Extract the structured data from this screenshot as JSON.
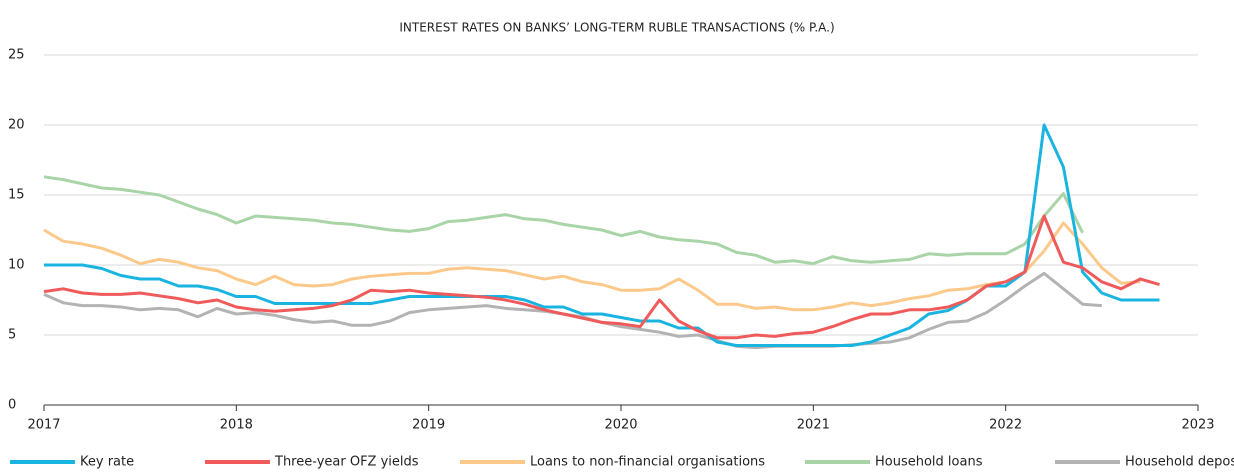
{
  "chart_data": {
    "type": "line",
    "title": "INTEREST RATES ON BANKS’ LONG-TERM RUBLE TRANSACTIONS (% P.A.)",
    "x": [
      2017.0,
      2017.1,
      2017.2,
      2017.3,
      2017.4,
      2017.5,
      2017.6,
      2017.7,
      2017.8,
      2017.9,
      2018.0,
      2018.1,
      2018.2,
      2018.3,
      2018.4,
      2018.5,
      2018.6,
      2018.7,
      2018.8,
      2018.9,
      2019.0,
      2019.1,
      2019.2,
      2019.3,
      2019.4,
      2019.5,
      2019.6,
      2019.7,
      2019.8,
      2019.9,
      2020.0,
      2020.1,
      2020.2,
      2020.3,
      2020.4,
      2020.5,
      2020.6,
      2020.7,
      2020.8,
      2020.9,
      2021.0,
      2021.1,
      2021.2,
      2021.3,
      2021.4,
      2021.5,
      2021.6,
      2021.7,
      2021.8,
      2021.9,
      2022.0,
      2022.1,
      2022.2,
      2022.3,
      2022.4,
      2022.5,
      2022.6,
      2022.7,
      2022.8
    ],
    "series": [
      {
        "name": "Key rate",
        "color": "#1ab4e0",
        "values": [
          10,
          10,
          10,
          9.75,
          9.25,
          9,
          9,
          8.5,
          8.5,
          8.25,
          7.75,
          7.75,
          7.25,
          7.25,
          7.25,
          7.25,
          7.25,
          7.25,
          7.5,
          7.75,
          7.75,
          7.75,
          7.75,
          7.75,
          7.75,
          7.5,
          7,
          7,
          6.5,
          6.5,
          6.25,
          6,
          6,
          5.5,
          5.5,
          4.5,
          4.25,
          4.25,
          4.25,
          4.25,
          4.25,
          4.25,
          4.25,
          4.5,
          5,
          5.5,
          6.5,
          6.75,
          7.5,
          8.5,
          8.5,
          9.5,
          20,
          17,
          9.5,
          8,
          7.5,
          7.5,
          7.5
        ]
      },
      {
        "name": "Three-year OFZ yields",
        "color": "#f05a5a",
        "values": [
          8.1,
          8.3,
          8.0,
          7.9,
          7.9,
          8.0,
          7.8,
          7.6,
          7.3,
          7.5,
          7.0,
          6.8,
          6.7,
          6.8,
          6.9,
          7.1,
          7.5,
          8.2,
          8.1,
          8.2,
          8.0,
          7.9,
          7.8,
          7.7,
          7.5,
          7.2,
          6.8,
          6.5,
          6.2,
          5.9,
          5.8,
          5.6,
          7.5,
          6.0,
          5.3,
          4.8,
          4.8,
          5.0,
          4.9,
          5.1,
          5.2,
          5.6,
          6.1,
          6.5,
          6.5,
          6.8,
          6.8,
          7.0,
          7.5,
          8.5,
          8.8,
          9.5,
          13.5,
          10.2,
          9.8,
          8.8,
          8.3,
          9.0,
          8.6
        ]
      },
      {
        "name": "Loans to non-financial organisations",
        "color": "#fcc98a",
        "values": [
          12.5,
          11.7,
          11.5,
          11.2,
          10.7,
          10.1,
          10.4,
          10.2,
          9.8,
          9.6,
          9.0,
          8.6,
          9.2,
          8.6,
          8.5,
          8.6,
          9.0,
          9.2,
          9.3,
          9.4,
          9.4,
          9.7,
          9.8,
          9.7,
          9.6,
          9.3,
          9.0,
          9.2,
          8.8,
          8.6,
          8.2,
          8.2,
          8.3,
          9.0,
          8.2,
          7.2,
          7.2,
          6.9,
          7.0,
          6.8,
          6.8,
          7.0,
          7.3,
          7.1,
          7.3,
          7.6,
          7.8,
          8.2,
          8.3,
          8.6,
          8.8,
          9.5,
          11.0,
          13.0,
          11.5,
          9.8,
          8.7,
          8.8,
          null
        ]
      },
      {
        "name": "Household loans",
        "color": "#a9d4a7",
        "values": [
          16.3,
          16.1,
          15.8,
          15.5,
          15.4,
          15.2,
          15.0,
          14.5,
          14.0,
          13.6,
          13.0,
          13.5,
          13.4,
          13.3,
          13.2,
          13.0,
          12.9,
          12.7,
          12.5,
          12.4,
          12.6,
          13.1,
          13.2,
          13.4,
          13.6,
          13.3,
          13.2,
          12.9,
          12.7,
          12.5,
          12.1,
          12.4,
          12.0,
          11.8,
          11.7,
          11.5,
          10.9,
          10.7,
          10.2,
          10.3,
          10.1,
          10.6,
          10.3,
          10.2,
          10.3,
          10.4,
          10.8,
          10.7,
          10.8,
          10.8,
          10.8,
          11.5,
          13.5,
          15.1,
          12.3,
          null,
          null,
          null,
          null
        ]
      },
      {
        "name": "Household deposits",
        "color": "#b3b3b3",
        "values": [
          7.9,
          7.3,
          7.1,
          7.1,
          7.0,
          6.8,
          6.9,
          6.8,
          6.3,
          6.9,
          6.5,
          6.6,
          6.4,
          6.1,
          5.9,
          6.0,
          5.7,
          5.7,
          6.0,
          6.6,
          6.8,
          6.9,
          7.0,
          7.1,
          6.9,
          6.8,
          6.7,
          6.5,
          6.3,
          5.9,
          5.6,
          5.4,
          5.2,
          4.9,
          5.0,
          4.6,
          4.2,
          4.1,
          4.2,
          4.2,
          4.2,
          4.2,
          4.3,
          4.4,
          4.5,
          4.8,
          5.4,
          5.9,
          6.0,
          6.6,
          7.5,
          8.5,
          9.4,
          8.3,
          7.2,
          7.1,
          null,
          null,
          null
        ]
      }
    ],
    "xlim": [
      2017,
      2023
    ],
    "xticks": [
      2017,
      2018,
      2019,
      2020,
      2021,
      2022,
      2023
    ],
    "ylim": [
      0,
      25
    ],
    "yticks": [
      0,
      5,
      10,
      15,
      20,
      25
    ],
    "grid": true,
    "legend": "bottom"
  }
}
